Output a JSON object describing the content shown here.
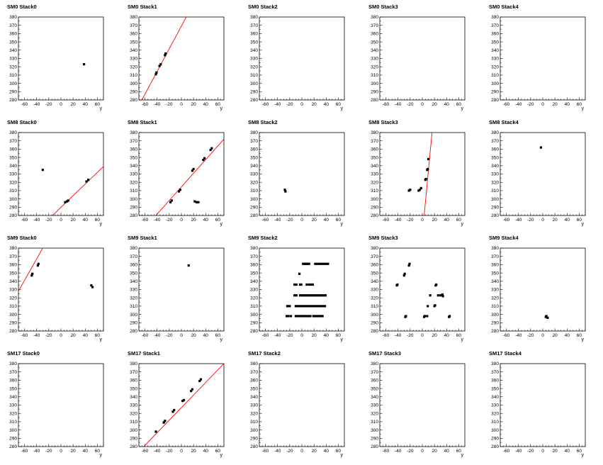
{
  "chart_data": {
    "type": "scatter",
    "xlabel": "y",
    "xlim": [
      -70,
      70
    ],
    "ylim": [
      280,
      380
    ],
    "xticks": [
      -60,
      -40,
      -20,
      0,
      20,
      40,
      60
    ],
    "yticks": [
      280,
      290,
      300,
      310,
      320,
      330,
      340,
      350,
      360,
      370,
      380
    ],
    "colors": {
      "fit": "#ff0000",
      "points": "#000000",
      "axis": "#000000"
    },
    "panels": [
      {
        "title": "SM0 Stack0",
        "points": [
          [
            38,
            323
          ]
        ],
        "fit": null
      },
      {
        "title": "SM0 Stack1",
        "points": [
          [
            -42,
            311
          ],
          [
            -41,
            313
          ],
          [
            -36,
            321
          ],
          [
            -34,
            323
          ],
          [
            -27,
            334
          ],
          [
            -26,
            336
          ]
        ],
        "fit": [
          [
            -65,
            280
          ],
          [
            8,
            380
          ]
        ]
      },
      {
        "title": "SM0 Stack2",
        "points": [],
        "fit": null
      },
      {
        "title": "SM0 Stack3",
        "points": [],
        "fit": null
      },
      {
        "title": "SM0 Stack4",
        "points": [],
        "fit": null
      },
      {
        "title": "SM8 Stack0",
        "points": [
          [
            -30,
            335
          ],
          [
            7,
            296
          ],
          [
            10,
            297
          ],
          [
            12,
            298
          ],
          [
            42,
            321
          ],
          [
            45,
            323
          ]
        ],
        "fit": [
          [
            -14,
            280
          ],
          [
            70,
            339
          ]
        ]
      },
      {
        "title": "SM8 Stack1",
        "points": [
          [
            -18,
            296
          ],
          [
            -16,
            298
          ],
          [
            -4,
            309
          ],
          [
            -2,
            311
          ],
          [
            18,
            334
          ],
          [
            20,
            336
          ],
          [
            22,
            297
          ],
          [
            25,
            296
          ],
          [
            28,
            296
          ],
          [
            36,
            347
          ],
          [
            38,
            349
          ],
          [
            48,
            359
          ],
          [
            50,
            361
          ]
        ],
        "fit": [
          [
            -42,
            280
          ],
          [
            70,
            372
          ]
        ]
      },
      {
        "title": "SM8 Stack2",
        "points": [
          [
            -28,
            311
          ],
          [
            -27,
            309
          ]
        ],
        "fit": null
      },
      {
        "title": "SM8 Stack3",
        "points": [
          [
            -22,
            310
          ],
          [
            -20,
            311
          ],
          [
            -6,
            310
          ],
          [
            -4,
            311
          ],
          [
            -2,
            313
          ],
          [
            5,
            323
          ],
          [
            6,
            324
          ],
          [
            8,
            335
          ],
          [
            9,
            336
          ],
          [
            10,
            348
          ]
        ],
        "fit": [
          [
            3,
            280
          ],
          [
            16,
            380
          ]
        ]
      },
      {
        "title": "SM8 Stack4",
        "points": [
          [
            -3,
            362
          ]
        ],
        "fit": null
      },
      {
        "title": "SM9 Stack0",
        "points": [
          [
            -48,
            347
          ],
          [
            -47,
            349
          ],
          [
            -38,
            359
          ],
          [
            -37,
            361
          ],
          [
            50,
            335
          ],
          [
            52,
            333
          ]
        ],
        "fit": [
          [
            -70,
            328
          ],
          [
            -30,
            380
          ]
        ]
      },
      {
        "title": "SM9 Stack1",
        "points": [
          [
            12,
            359
          ]
        ],
        "fit": null
      },
      {
        "title": "SM9 Stack2",
        "points": [
          [
            -4,
            349
          ],
          [
            2,
            361
          ],
          [
            4,
            361
          ],
          [
            6,
            361
          ],
          [
            8,
            361
          ],
          [
            10,
            361
          ],
          [
            12,
            361
          ],
          [
            22,
            361
          ],
          [
            25,
            361
          ],
          [
            28,
            361
          ],
          [
            31,
            361
          ],
          [
            34,
            361
          ],
          [
            37,
            361
          ],
          [
            40,
            361
          ],
          [
            43,
            361
          ],
          [
            -12,
            336
          ],
          [
            -9,
            336
          ],
          [
            -3,
            336
          ],
          [
            -1,
            336
          ],
          [
            8,
            336
          ],
          [
            12,
            336
          ],
          [
            15,
            336
          ],
          [
            18,
            336
          ],
          [
            -12,
            323
          ],
          [
            -9,
            323
          ],
          [
            -3,
            323
          ],
          [
            0,
            323
          ],
          [
            3,
            323
          ],
          [
            6,
            323
          ],
          [
            9,
            323
          ],
          [
            12,
            323
          ],
          [
            15,
            323
          ],
          [
            18,
            323
          ],
          [
            21,
            323
          ],
          [
            24,
            323
          ],
          [
            27,
            323
          ],
          [
            30,
            323
          ],
          [
            33,
            323
          ],
          [
            36,
            323
          ],
          [
            39,
            323
          ],
          [
            -24,
            310
          ],
          [
            -22,
            310
          ],
          [
            -20,
            310
          ],
          [
            -10,
            310
          ],
          [
            -7,
            310
          ],
          [
            -4,
            310
          ],
          [
            -1,
            310
          ],
          [
            2,
            310
          ],
          [
            5,
            310
          ],
          [
            8,
            310
          ],
          [
            11,
            310
          ],
          [
            14,
            310
          ],
          [
            17,
            310
          ],
          [
            20,
            310
          ],
          [
            23,
            310
          ],
          [
            26,
            310
          ],
          [
            29,
            310
          ],
          [
            32,
            310
          ],
          [
            35,
            310
          ],
          [
            38,
            310
          ],
          [
            -25,
            298
          ],
          [
            -22,
            298
          ],
          [
            -18,
            298
          ],
          [
            -10,
            298
          ],
          [
            -7,
            298
          ],
          [
            -4,
            298
          ],
          [
            -1,
            298
          ],
          [
            2,
            298
          ],
          [
            5,
            298
          ],
          [
            8,
            298
          ],
          [
            11,
            298
          ],
          [
            14,
            298
          ],
          [
            19,
            298
          ],
          [
            22,
            298
          ],
          [
            25,
            298
          ],
          [
            28,
            298
          ],
          [
            31,
            298
          ],
          [
            34,
            298
          ]
        ],
        "fit": null
      },
      {
        "title": "SM9 Stack3",
        "points": [
          [
            -42,
            335
          ],
          [
            -41,
            336
          ],
          [
            -30,
            347
          ],
          [
            -29,
            349
          ],
          [
            -22,
            359
          ],
          [
            -21,
            361
          ],
          [
            -28,
            297
          ],
          [
            -27,
            298
          ],
          [
            3,
            297
          ],
          [
            4,
            298
          ],
          [
            8,
            298
          ],
          [
            9,
            310
          ],
          [
            13,
            323
          ],
          [
            20,
            310
          ],
          [
            21,
            311
          ],
          [
            22,
            335
          ],
          [
            23,
            336
          ],
          [
            26,
            323
          ],
          [
            30,
            323
          ],
          [
            33,
            324
          ],
          [
            34,
            322
          ],
          [
            44,
            297
          ],
          [
            45,
            298
          ]
        ],
        "fit": null
      },
      {
        "title": "SM9 Stack4",
        "points": [
          [
            5,
            297
          ],
          [
            6,
            298
          ],
          [
            8,
            296
          ]
        ],
        "fit": null
      },
      {
        "title": "SM17 Stack0",
        "points": [],
        "fit": null
      },
      {
        "title": "SM17 Stack1",
        "points": [
          [
            -42,
            298
          ],
          [
            -29,
            309
          ],
          [
            -27,
            311
          ],
          [
            -14,
            322
          ],
          [
            -12,
            324
          ],
          [
            2,
            335
          ],
          [
            4,
            336
          ],
          [
            16,
            347
          ],
          [
            18,
            349
          ],
          [
            30,
            359
          ],
          [
            32,
            361
          ]
        ],
        "fit": [
          [
            -62,
            280
          ],
          [
            70,
            380
          ]
        ]
      },
      {
        "title": "SM17 Stack2",
        "points": [],
        "fit": null
      },
      {
        "title": "SM17 Stack3",
        "points": [],
        "fit": null
      },
      {
        "title": "SM17 Stack4",
        "points": [],
        "fit": null
      }
    ]
  }
}
